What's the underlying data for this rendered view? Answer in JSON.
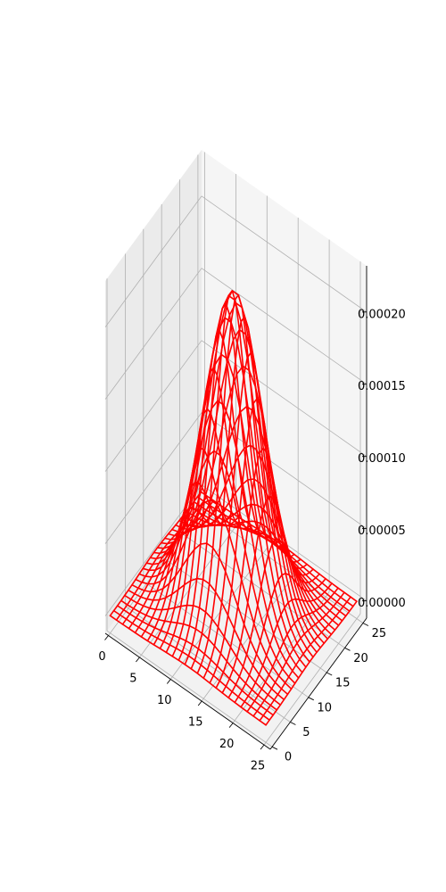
{
  "chart_data": {
    "type": "wireframe-3d",
    "title": "",
    "xlabel": "",
    "ylabel": "",
    "zlabel": "",
    "xlim": [
      -0.5,
      26
    ],
    "ylim": [
      -0.5,
      26
    ],
    "zlim": [
      -1.2e-05,
      0.000232
    ],
    "x_ticks": [
      0,
      5,
      10,
      15,
      20,
      25
    ],
    "y_ticks": [
      0,
      5,
      10,
      15,
      20,
      25
    ],
    "z_ticks": [
      0.0,
      5e-05,
      0.0001,
      0.00015,
      0.0002
    ],
    "x_tick_labels": [
      "0",
      "5",
      "10",
      "15",
      "20",
      "25"
    ],
    "y_tick_labels": [
      "0",
      "5",
      "10",
      "15",
      "20",
      "25"
    ],
    "z_tick_labels": [
      "0.00000",
      "0.00005",
      "0.00010",
      "0.00015",
      "0.00020"
    ],
    "surface": {
      "function": "z = peak * exp(-((x - center_x)^2 + (y - center_y)^2) / (2 * sigma^2))",
      "peak": 0.00022,
      "center_x": 12.5,
      "center_y": 12.5,
      "sigma": 4.2,
      "grid_min": 0,
      "grid_max": 25,
      "grid_count": 26
    },
    "wire_color": "#ff0000",
    "grid": true,
    "pane_color": "#f2f2f2"
  }
}
